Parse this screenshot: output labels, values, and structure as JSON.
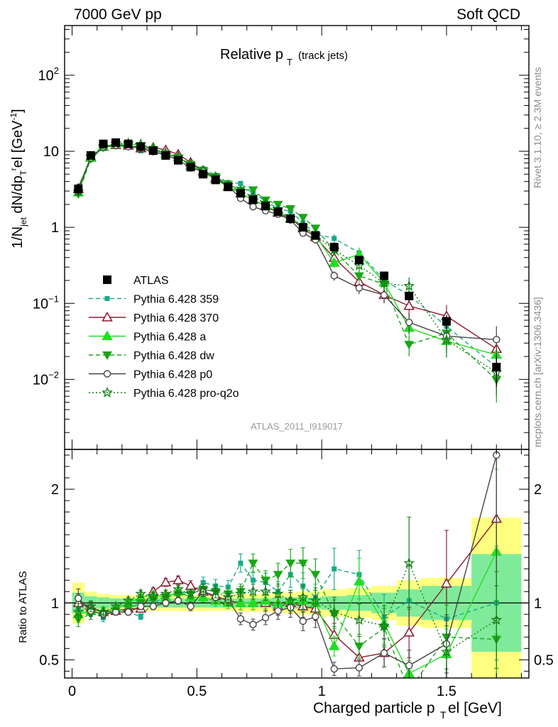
{
  "header": {
    "left": "7000 GeV pp",
    "right": "Soft QCD"
  },
  "main_title": "Relative p",
  "main_title_sub": "T",
  "main_title_note": "(track jets)",
  "analysis_id": "ATLAS_2011_I919017",
  "side_text": {
    "rivet": "Rivet 3.1.10, ≥ 2.3M events",
    "mcplots": "mcplots.cern.ch [arXiv:1306.3436]"
  },
  "xlabel": "Charged particle p",
  "xlabel_sub": "T",
  "xlabel_rest": "el [GeV]",
  "ylabel_ratio": "Ratio to ATLAS",
  "colors": {
    "atlas": "#000000",
    "p359": "#1aaa88",
    "p370": "#8b1a2e",
    "pa": "#22dd22",
    "pdw": "#19a619",
    "pp0": "#444444",
    "pq2o": "#157d15",
    "band_inner": "#7feb9a",
    "band_outer": "#ffff80"
  },
  "chart_data": [
    {
      "type": "line",
      "yscale": "log",
      "xlim": [
        -0.03,
        1.83
      ],
      "ylim": [
        0.0012,
        450
      ],
      "yticks": [
        {
          "value": 0.01,
          "base": "10",
          "exp": "−2"
        },
        {
          "value": 0.1,
          "base": "10",
          "exp": "−1"
        },
        {
          "value": 1,
          "label": "1"
        },
        {
          "value": 10,
          "label": "10"
        },
        {
          "value": 100,
          "base": "10",
          "exp": "2"
        }
      ],
      "ylabel_parts": [
        "1/N",
        "jet",
        " dN/dp",
        "T",
        "r",
        "el [GeV",
        "-1",
        "]"
      ],
      "legend_position": "lower-left",
      "x": [
        0.025,
        0.075,
        0.125,
        0.175,
        0.225,
        0.275,
        0.325,
        0.375,
        0.425,
        0.475,
        0.525,
        0.575,
        0.625,
        0.675,
        0.725,
        0.775,
        0.825,
        0.875,
        0.925,
        0.975,
        1.05,
        1.15,
        1.25,
        1.35,
        1.5,
        1.7
      ],
      "atlas": [
        3.2,
        8.8,
        12.5,
        13.0,
        12.5,
        11.5,
        10.2,
        8.8,
        7.6,
        6.2,
        5.0,
        4.2,
        3.4,
        2.8,
        2.3,
        1.9,
        1.6,
        1.3,
        1.0,
        0.78,
        0.55,
        0.37,
        0.23,
        0.125,
        0.058,
        0.0145
      ],
      "atlas_err_rel": [
        0.18,
        0.09,
        0.07,
        0.05,
        0.05,
        0.05,
        0.05,
        0.05,
        0.05,
        0.05,
        0.05,
        0.05,
        0.05,
        0.06,
        0.06,
        0.06,
        0.07,
        0.07,
        0.07,
        0.08,
        0.09,
        0.1,
        0.12,
        0.15,
        0.2,
        0.45
      ],
      "series": [
        {
          "name": "ATLAS",
          "color_key": "atlas",
          "dash": "none",
          "marker": "square-filled",
          "role": "data"
        },
        {
          "name": "Pythia 6.428 359",
          "color_key": "p359",
          "dash": "6,4",
          "marker": "square-small",
          "ratio": [
            0.96,
            0.97,
            0.87,
            0.95,
            0.92,
            0.88,
            1.0,
            1.05,
            1.1,
            1.08,
            1.18,
            1.15,
            1.14,
            1.35,
            1.2,
            1.18,
            1.1,
            1.25,
            1.15,
            1.05,
            1.3,
            1.25,
            0.88,
            1.02,
            0.86,
            1.0
          ],
          "err": [
            0.08,
            0.05,
            0.04,
            0.03,
            0.03,
            0.03,
            0.03,
            0.03,
            0.03,
            0.04,
            0.04,
            0.05,
            0.05,
            0.06,
            0.06,
            0.07,
            0.08,
            0.09,
            0.1,
            0.11,
            0.14,
            0.17,
            0.22,
            0.3,
            0.4,
            0.5
          ]
        },
        {
          "name": "Pythia 6.428 370",
          "color_key": "p370",
          "dash": "none",
          "marker": "triangle-open",
          "ratio": [
            1.0,
            0.96,
            0.92,
            0.93,
            0.95,
            0.95,
            1.1,
            1.18,
            1.2,
            1.15,
            1.1,
            1.06,
            1.02,
            1.0,
            1.0,
            1.0,
            0.97,
            1.0,
            0.97,
            0.95,
            0.72,
            0.52,
            0.56,
            0.74,
            1.17,
            1.74
          ],
          "err": [
            0.08,
            0.05,
            0.04,
            0.03,
            0.03,
            0.03,
            0.03,
            0.03,
            0.03,
            0.04,
            0.04,
            0.05,
            0.05,
            0.06,
            0.06,
            0.07,
            0.08,
            0.09,
            0.1,
            0.11,
            0.14,
            0.17,
            0.22,
            0.3,
            0.4,
            0.5
          ]
        },
        {
          "name": "Pythia 6.428 a",
          "color_key": "pa",
          "dash": "none",
          "marker": "triangle-filled",
          "ratio": [
            0.9,
            0.93,
            0.93,
            0.95,
            1.0,
            1.05,
            1.07,
            1.05,
            1.1,
            1.05,
            1.05,
            1.02,
            1.0,
            1.0,
            1.0,
            1.02,
            1.0,
            1.02,
            1.02,
            1.0,
            0.62,
            1.19,
            0.82,
            0.38,
            0.55,
            1.45
          ],
          "err": [
            0.08,
            0.05,
            0.04,
            0.03,
            0.03,
            0.03,
            0.03,
            0.03,
            0.03,
            0.04,
            0.04,
            0.05,
            0.05,
            0.06,
            0.06,
            0.07,
            0.08,
            0.09,
            0.1,
            0.11,
            0.14,
            0.17,
            0.22,
            0.3,
            0.4,
            0.5
          ]
        },
        {
          "name": "Pythia 6.428 dw",
          "color_key": "pdw",
          "dash": "6,4",
          "marker": "triangle-down-filled",
          "ratio": [
            0.86,
            0.9,
            0.9,
            0.93,
            0.95,
            1.0,
            1.03,
            1.05,
            1.07,
            1.08,
            1.12,
            1.1,
            1.08,
            1.1,
            1.35,
            1.2,
            1.25,
            1.35,
            1.35,
            1.25,
            0.9,
            0.62,
            0.78,
            0.23,
            0.7,
            0.68
          ],
          "err": [
            0.08,
            0.05,
            0.04,
            0.03,
            0.03,
            0.03,
            0.03,
            0.03,
            0.03,
            0.04,
            0.04,
            0.05,
            0.05,
            0.06,
            0.06,
            0.07,
            0.08,
            0.09,
            0.1,
            0.11,
            0.14,
            0.17,
            0.22,
            0.3,
            0.4,
            0.5
          ]
        },
        {
          "name": "Pythia 6.428 p0",
          "color_key": "pp0",
          "dash": "none",
          "marker": "circle-open",
          "ratio": [
            1.04,
            0.93,
            0.9,
            0.92,
            0.92,
            0.97,
            0.97,
            1.0,
            1.02,
            0.97,
            1.1,
            1.05,
            1.03,
            0.86,
            0.81,
            0.87,
            0.93,
            0.96,
            0.84,
            0.88,
            0.42,
            0.43,
            0.56,
            0.45,
            0.64,
            2.3
          ],
          "err": [
            0.08,
            0.05,
            0.04,
            0.03,
            0.03,
            0.03,
            0.03,
            0.03,
            0.03,
            0.04,
            0.04,
            0.05,
            0.05,
            0.06,
            0.06,
            0.07,
            0.08,
            0.09,
            0.1,
            0.11,
            0.14,
            0.17,
            0.22,
            0.3,
            0.4,
            0.5
          ]
        },
        {
          "name": "Pythia 6.428 pro-q2o",
          "color_key": "pq2o",
          "dash": "2,3",
          "marker": "star-open",
          "ratio": [
            0.92,
            0.97,
            0.92,
            0.97,
            1.02,
            1.08,
            1.06,
            1.08,
            1.12,
            1.08,
            1.12,
            1.1,
            1.05,
            1.08,
            1.1,
            1.1,
            1.08,
            1.02,
            1.05,
            1.02,
            0.92,
            0.85,
            0.8,
            1.35,
            0.57,
            0.85
          ],
          "err": [
            0.08,
            0.05,
            0.04,
            0.03,
            0.03,
            0.03,
            0.03,
            0.03,
            0.03,
            0.04,
            0.04,
            0.05,
            0.05,
            0.06,
            0.06,
            0.07,
            0.08,
            0.09,
            0.1,
            0.11,
            0.14,
            0.17,
            0.22,
            0.3,
            0.4,
            0.5
          ]
        }
      ]
    },
    {
      "type": "line",
      "role": "ratio",
      "xlim": [
        -0.03,
        1.83
      ],
      "ylim": [
        0.34,
        2.35
      ],
      "yticks": [
        0.5,
        1,
        2
      ],
      "xticks": [
        0,
        0.5,
        1,
        1.5
      ],
      "xtick_labels": [
        "0",
        "0.5",
        "1",
        "1.5"
      ],
      "bins": [
        {
          "lo": 0.0,
          "hi": 0.05,
          "inner": 0.09,
          "outer": 0.18
        },
        {
          "lo": 0.05,
          "hi": 0.1,
          "inner": 0.06,
          "outer": 0.1
        },
        {
          "lo": 0.1,
          "hi": 0.15,
          "inner": 0.05,
          "outer": 0.08
        },
        {
          "lo": 0.15,
          "hi": 0.2,
          "inner": 0.04,
          "outer": 0.07
        },
        {
          "lo": 0.2,
          "hi": 0.25,
          "inner": 0.04,
          "outer": 0.07
        },
        {
          "lo": 0.25,
          "hi": 0.3,
          "inner": 0.04,
          "outer": 0.07
        },
        {
          "lo": 0.3,
          "hi": 0.35,
          "inner": 0.04,
          "outer": 0.07
        },
        {
          "lo": 0.35,
          "hi": 0.4,
          "inner": 0.04,
          "outer": 0.07
        },
        {
          "lo": 0.4,
          "hi": 0.45,
          "inner": 0.04,
          "outer": 0.07
        },
        {
          "lo": 0.45,
          "hi": 0.5,
          "inner": 0.04,
          "outer": 0.07
        },
        {
          "lo": 0.5,
          "hi": 0.55,
          "inner": 0.04,
          "outer": 0.07
        },
        {
          "lo": 0.55,
          "hi": 0.6,
          "inner": 0.04,
          "outer": 0.07
        },
        {
          "lo": 0.6,
          "hi": 0.65,
          "inner": 0.04,
          "outer": 0.07
        },
        {
          "lo": 0.65,
          "hi": 0.7,
          "inner": 0.04,
          "outer": 0.08
        },
        {
          "lo": 0.7,
          "hi": 0.75,
          "inner": 0.04,
          "outer": 0.08
        },
        {
          "lo": 0.75,
          "hi": 0.8,
          "inner": 0.04,
          "outer": 0.08
        },
        {
          "lo": 0.8,
          "hi": 0.85,
          "inner": 0.05,
          "outer": 0.09
        },
        {
          "lo": 0.85,
          "hi": 0.9,
          "inner": 0.05,
          "outer": 0.09
        },
        {
          "lo": 0.9,
          "hi": 0.95,
          "inner": 0.05,
          "outer": 0.1
        },
        {
          "lo": 0.95,
          "hi": 1.0,
          "inner": 0.05,
          "outer": 0.1
        },
        {
          "lo": 1.0,
          "hi": 1.1,
          "inner": 0.06,
          "outer": 0.12
        },
        {
          "lo": 1.1,
          "hi": 1.2,
          "inner": 0.07,
          "outer": 0.13
        },
        {
          "lo": 1.2,
          "hi": 1.3,
          "inner": 0.09,
          "outer": 0.15
        },
        {
          "lo": 1.3,
          "hi": 1.4,
          "inner": 0.12,
          "outer": 0.2
        },
        {
          "lo": 1.4,
          "hi": 1.6,
          "inner": 0.15,
          "outer": 0.22
        },
        {
          "lo": 1.6,
          "hi": 1.8,
          "inner": 0.43,
          "outer": 0.75
        }
      ]
    }
  ]
}
